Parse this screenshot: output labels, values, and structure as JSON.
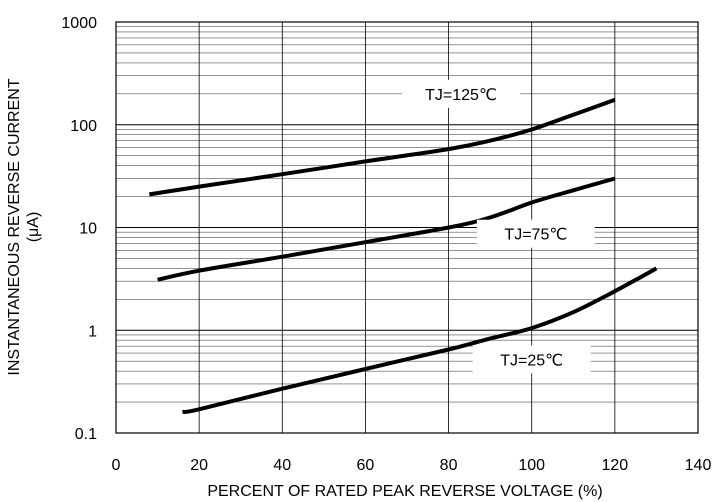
{
  "chart_data": {
    "type": "line",
    "title": "",
    "xlabel": "PERCENT OF RATED PEAK REVERSE VOLTAGE (%)",
    "ylabel": "INSTANTANEOUS REVERSE CURRENT",
    "ylabel_unit": "(μA)",
    "xlim": [
      0,
      140
    ],
    "ylim": [
      0.1,
      1000
    ],
    "yscale": "log",
    "grid": true,
    "x_ticks": [
      "0",
      "20",
      "40",
      "60",
      "80",
      "100",
      "120",
      "140"
    ],
    "y_ticks": [
      "0.1",
      "1",
      "10",
      "100",
      "1000"
    ],
    "line_color": "#000000",
    "series": [
      {
        "name": "TJ=125℃",
        "x": [
          8,
          20,
          40,
          60,
          80,
          90,
          100,
          110,
          120
        ],
        "y": [
          21,
          25,
          33,
          44,
          58,
          70,
          90,
          125,
          175
        ]
      },
      {
        "name": "TJ=75℃",
        "x": [
          10,
          20,
          40,
          60,
          80,
          90,
          100,
          110,
          120
        ],
        "y": [
          3.1,
          3.8,
          5.2,
          7.2,
          10,
          12.5,
          17.5,
          23,
          30
        ]
      },
      {
        "name": "TJ=25℃",
        "x": [
          16,
          20,
          40,
          60,
          80,
          90,
          100,
          110,
          120,
          130
        ],
        "y": [
          0.16,
          0.17,
          0.27,
          0.42,
          0.65,
          0.83,
          1.05,
          1.5,
          2.4,
          4.0
        ]
      }
    ]
  }
}
